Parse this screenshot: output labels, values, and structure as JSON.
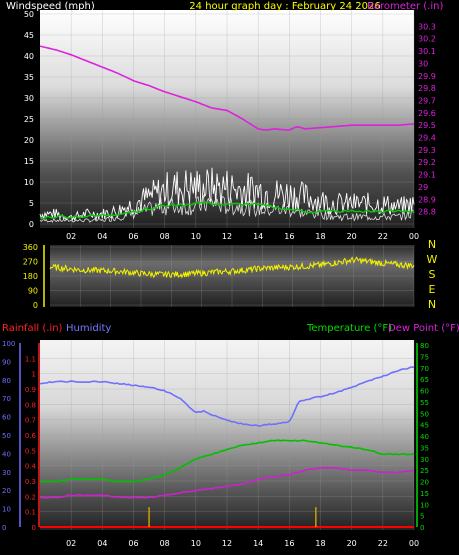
{
  "colors": {
    "background": "#000000",
    "wind": "#ffffff",
    "wind_gust": "#ffffff",
    "wind_avg": "#00cc00",
    "barometer": "#dd22dd",
    "direction": "#f2f200",
    "humidity": "#7070ff",
    "temperature": "#00c000",
    "dewpoint": "#cc22cc",
    "rain": "#ff0000",
    "rain_bar": "#c8a000",
    "title": "#ffff00",
    "axis_text": "#ffffff",
    "baro_text": "#dd22dd",
    "dir_text": "#f2f200",
    "rain_text": "#ff2020",
    "hum_text": "#7777ff",
    "temp_text": "#00dd00",
    "dew_text": "#dd22dd"
  },
  "chart_data": [
    {
      "type": "line",
      "title": "24 hour graph day : February 24 2026",
      "ylabel": "Windspeed (mph)",
      "y2label": "Barometer (.in)",
      "xticks": [
        "02",
        "04",
        "06",
        "08",
        "10",
        "12",
        "14",
        "16",
        "18",
        "20",
        "22",
        "00"
      ],
      "ylim": [
        0,
        50
      ],
      "yticks": [
        "0",
        "5",
        "10",
        "15",
        "20",
        "25",
        "30",
        "35",
        "40",
        "45",
        "50"
      ],
      "y2lim": [
        28.7,
        30.4
      ],
      "y2ticks": [
        "28.8",
        "28.9",
        "29",
        "29.1",
        "29.2",
        "29.3",
        "29.4",
        "29.5",
        "29.6",
        "29.7",
        "29.8",
        "29.9",
        "30",
        "30.1",
        "30.2",
        "30.3"
      ],
      "series": [
        {
          "name": "Barometer (.in)",
          "axis": "right",
          "x": [
            0,
            1,
            2,
            3,
            4,
            5,
            6,
            7,
            8,
            9,
            10,
            11,
            12,
            13,
            14,
            14.5,
            15,
            16,
            16.5,
            17,
            18,
            19,
            20,
            21,
            22,
            23,
            24
          ],
          "values": [
            30.14,
            30.11,
            30.07,
            30.02,
            29.97,
            29.92,
            29.86,
            29.82,
            29.77,
            29.73,
            29.69,
            29.64,
            29.62,
            29.55,
            29.47,
            29.46,
            29.47,
            29.46,
            29.49,
            29.47,
            29.48,
            29.49,
            29.5,
            29.5,
            29.5,
            29.5,
            29.51
          ]
        },
        {
          "name": "Wind gust (mph)",
          "axis": "left",
          "x": [
            0,
            1,
            2,
            3,
            4,
            5,
            6,
            7,
            8,
            9,
            10,
            11,
            12,
            13,
            14,
            15,
            16,
            17,
            18,
            19,
            20,
            21,
            22,
            23,
            24
          ],
          "values": [
            3,
            3,
            2,
            3,
            3,
            4,
            6,
            8,
            10,
            11,
            11,
            11,
            11,
            10,
            10,
            9,
            9,
            8,
            7,
            6,
            6,
            6,
            6,
            5,
            6
          ]
        },
        {
          "name": "Wind speed (mph)",
          "axis": "left",
          "x": [
            0,
            1,
            2,
            3,
            4,
            5,
            6,
            7,
            8,
            9,
            10,
            11,
            12,
            13,
            14,
            15,
            16,
            17,
            18,
            19,
            20,
            21,
            22,
            23,
            24
          ],
          "values": [
            1,
            1,
            1,
            1,
            1,
            2,
            3,
            4,
            5,
            5,
            5,
            6,
            5,
            5,
            4,
            4,
            4,
            3,
            3,
            2,
            2,
            2,
            2,
            2,
            3
          ]
        },
        {
          "name": "Wind average (mph)",
          "axis": "left",
          "x": [
            0,
            1,
            2,
            3,
            4,
            5,
            6,
            7,
            8,
            9,
            10,
            11,
            12,
            13,
            14,
            15,
            16,
            17,
            18,
            19,
            20,
            21,
            22,
            23,
            24
          ],
          "values": [
            1.5,
            1.8,
            1.8,
            1.8,
            2,
            2.5,
            3,
            3.5,
            4.5,
            4.5,
            5,
            5,
            4.5,
            4.8,
            4.5,
            4,
            3.5,
            3,
            3,
            3,
            3,
            3,
            3,
            3,
            3
          ]
        }
      ],
      "legend": "none"
    },
    {
      "type": "line",
      "xticks": [
        "02",
        "04",
        "06",
        "08",
        "10",
        "12",
        "14",
        "16",
        "18",
        "20",
        "22",
        "00"
      ],
      "ylim": [
        0,
        360
      ],
      "yticks": [
        "0",
        "90",
        "180",
        "270",
        "360"
      ],
      "side_labels": [
        "N",
        "W",
        "S",
        "E",
        "N"
      ],
      "series": [
        {
          "name": "Wind direction",
          "x": [
            0,
            1,
            2,
            3,
            4,
            5,
            6,
            7,
            8,
            9,
            10,
            11,
            12,
            13,
            14,
            15,
            16,
            17,
            18,
            19,
            20,
            21,
            22,
            23,
            24
          ],
          "values": [
            235,
            228,
            218,
            215,
            212,
            205,
            195,
            190,
            190,
            192,
            198,
            205,
            210,
            218,
            228,
            232,
            237,
            242,
            250,
            265,
            280,
            270,
            258,
            250,
            245
          ]
        }
      ]
    },
    {
      "type": "line",
      "xticks": [
        "02",
        "04",
        "06",
        "08",
        "10",
        "12",
        "14",
        "16",
        "18",
        "20",
        "22",
        "00"
      ],
      "ylabel_left_outer": "Rainfall (.in)",
      "ylabel_left_inner": "Humidity",
      "ylabel_right": "Temperature (°F)",
      "ylabel_right2": "Dew Point (°F)",
      "humidity_ylim": [
        0,
        100
      ],
      "humidity_yticks": [
        "0",
        "10",
        "20",
        "30",
        "40",
        "50",
        "60",
        "70",
        "80",
        "90",
        "100"
      ],
      "rain_ylim": [
        0,
        1.2
      ],
      "rain_yticks": [
        "0",
        "0.1",
        "0.2",
        "0.3",
        "0.4",
        "0.5",
        "0.6",
        "0.7",
        "0.8",
        "0.9",
        "1",
        "1.1"
      ],
      "temp_ylim": [
        0,
        80
      ],
      "temp_yticks": [
        "0",
        "5",
        "10",
        "15",
        "20",
        "25",
        "30",
        "35",
        "40",
        "45",
        "50",
        "55",
        "60",
        "65",
        "70",
        "75",
        "80"
      ],
      "series": [
        {
          "name": "Humidity",
          "axis": "humidity",
          "x": [
            0,
            1,
            2,
            3,
            4,
            5,
            6,
            7,
            8,
            9,
            10,
            10.5,
            11,
            12,
            13,
            14,
            15,
            16,
            16.6,
            17,
            18,
            19,
            20,
            21,
            22,
            23,
            24
          ],
          "values": [
            78,
            79,
            79,
            79,
            79,
            78,
            77,
            76,
            74,
            70,
            62,
            63,
            61,
            58,
            56,
            55,
            56,
            57,
            68,
            69,
            71,
            73,
            76,
            79,
            82,
            85,
            87
          ]
        },
        {
          "name": "Temperature",
          "axis": "temperature",
          "x": [
            0,
            1,
            2,
            3,
            4,
            5,
            6,
            7,
            8,
            9,
            10,
            11,
            12,
            13,
            14,
            15,
            16,
            17,
            18,
            19,
            20,
            21,
            22,
            23,
            24
          ],
          "values": [
            20,
            20,
            21,
            21,
            21,
            20,
            20,
            21,
            23,
            26,
            30,
            32,
            34,
            36,
            37,
            38,
            38,
            38,
            37,
            36,
            35,
            34,
            32,
            32,
            32
          ]
        },
        {
          "name": "Dew Point",
          "axis": "temperature",
          "x": [
            0,
            1,
            2,
            3,
            4,
            5,
            6,
            7,
            8,
            9,
            10,
            11,
            12,
            13,
            14,
            15,
            16,
            17,
            18,
            19,
            20,
            21,
            22,
            23,
            24
          ],
          "values": [
            13,
            13,
            14,
            14,
            14,
            13,
            13,
            13,
            14,
            15,
            16,
            17,
            18,
            19,
            21,
            22,
            23,
            25,
            26,
            26,
            25,
            25,
            24,
            24,
            25
          ]
        },
        {
          "name": "Rainfall",
          "axis": "rain",
          "x": [
            0,
            24
          ],
          "values": [
            0,
            0
          ]
        }
      ],
      "rain_events": [
        7,
        17.7
      ]
    }
  ]
}
